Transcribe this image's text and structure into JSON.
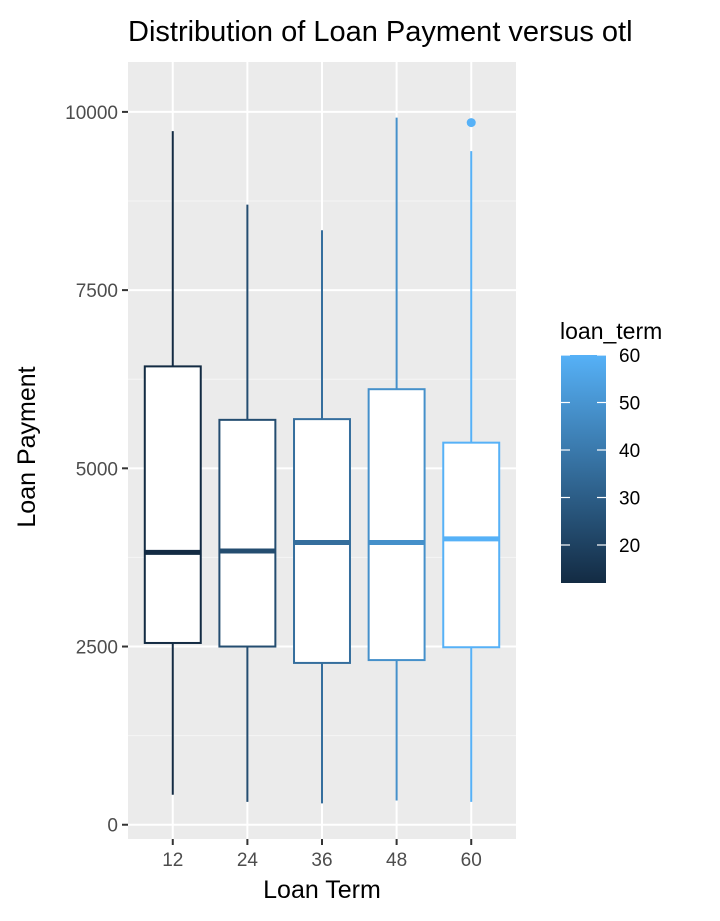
{
  "chart_data": {
    "type": "boxplot",
    "title": "Distribution of Loan Payment versus otl",
    "xlabel": "Loan Term",
    "ylabel": "Loan Payment",
    "categories": [
      "12",
      "24",
      "36",
      "48",
      "60"
    ],
    "ylim": [
      -200,
      10700
    ],
    "yticks": [
      0,
      2500,
      5000,
      7500,
      10000
    ],
    "ytick_labels": [
      "0",
      "2500",
      "5000",
      "7500",
      "10000"
    ],
    "boxes": [
      {
        "term": 12,
        "whisker_low": 420,
        "q1": 2550,
        "median": 3820,
        "q3": 6430,
        "whisker_high": 9730,
        "outliers": []
      },
      {
        "term": 24,
        "whisker_low": 320,
        "q1": 2500,
        "median": 3840,
        "q3": 5680,
        "whisker_high": 8700,
        "outliers": []
      },
      {
        "term": 36,
        "whisker_low": 300,
        "q1": 2270,
        "median": 3960,
        "q3": 5690,
        "whisker_high": 8340,
        "outliers": []
      },
      {
        "term": 48,
        "whisker_low": 340,
        "q1": 2310,
        "median": 3960,
        "q3": 6110,
        "whisker_high": 9920,
        "outliers": []
      },
      {
        "term": 60,
        "whisker_low": 320,
        "q1": 2490,
        "median": 4010,
        "q3": 5360,
        "whisker_high": 9450,
        "outliers": [
          9850
        ]
      }
    ],
    "legend": {
      "title": "loan_term",
      "type": "colorbar",
      "range": [
        12,
        60
      ],
      "ticks": [
        20,
        30,
        40,
        50,
        60
      ],
      "tick_labels": [
        "20",
        "30",
        "40",
        "50",
        "60"
      ],
      "low_color": "#132B43",
      "high_color": "#56B1F7",
      "placement": "right"
    },
    "colors": {
      "panel_background": "#ebebeb",
      "grid_major": "#ffffff",
      "box_fill": "#ffffff"
    },
    "grid": true
  }
}
